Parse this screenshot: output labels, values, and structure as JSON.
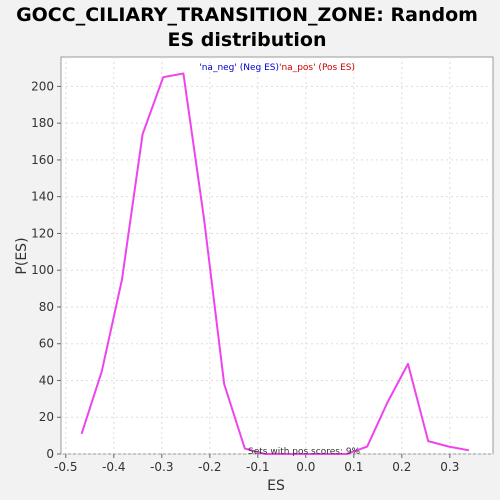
{
  "chart_data": {
    "type": "line",
    "title_line1": "GOCC_CILIARY_TRANSITION_ZONE: Random",
    "title_line2": "ES distribution",
    "xlabel": "ES",
    "ylabel": "P(ES)",
    "xlim": [
      -0.51,
      0.39
    ],
    "ylim": [
      0,
      216
    ],
    "xticks": [
      -0.5,
      -0.4,
      -0.3,
      -0.2,
      -0.1,
      0.0,
      0.1,
      0.2,
      0.3
    ],
    "xtick_labels": [
      "-0.5",
      "-0.4",
      "-0.3",
      "-0.2",
      "-0.1",
      "0.0",
      "0.1",
      "0.2",
      "0.3"
    ],
    "yticks": [
      0,
      20,
      40,
      60,
      80,
      100,
      120,
      140,
      160,
      180,
      200
    ],
    "ytick_labels": [
      "0",
      "20",
      "40",
      "60",
      "80",
      "100",
      "120",
      "140",
      "160",
      "180",
      "200"
    ],
    "grid": true,
    "legend_neg": "'na_neg' (Neg ES)",
    "legend_pos": "'na_pos' (Pos ES)",
    "legend_neg_color": "#0000cc",
    "legend_pos_color": "#cc0000",
    "annotation": "Sets with pos scores: 9%",
    "series": [
      {
        "color": "#ee44ee",
        "x": [
          -0.467,
          -0.425,
          -0.383,
          -0.34,
          -0.297,
          -0.255,
          -0.212,
          -0.17,
          -0.127,
          -0.085,
          -0.042,
          0.0,
          0.043,
          0.085,
          0.128,
          0.17,
          0.213,
          0.255,
          0.298,
          0.34
        ],
        "y": [
          11,
          45,
          95,
          174,
          205,
          207,
          128,
          38,
          3,
          0,
          0,
          0,
          0,
          0,
          4,
          28,
          49,
          7,
          4,
          2
        ]
      }
    ]
  }
}
